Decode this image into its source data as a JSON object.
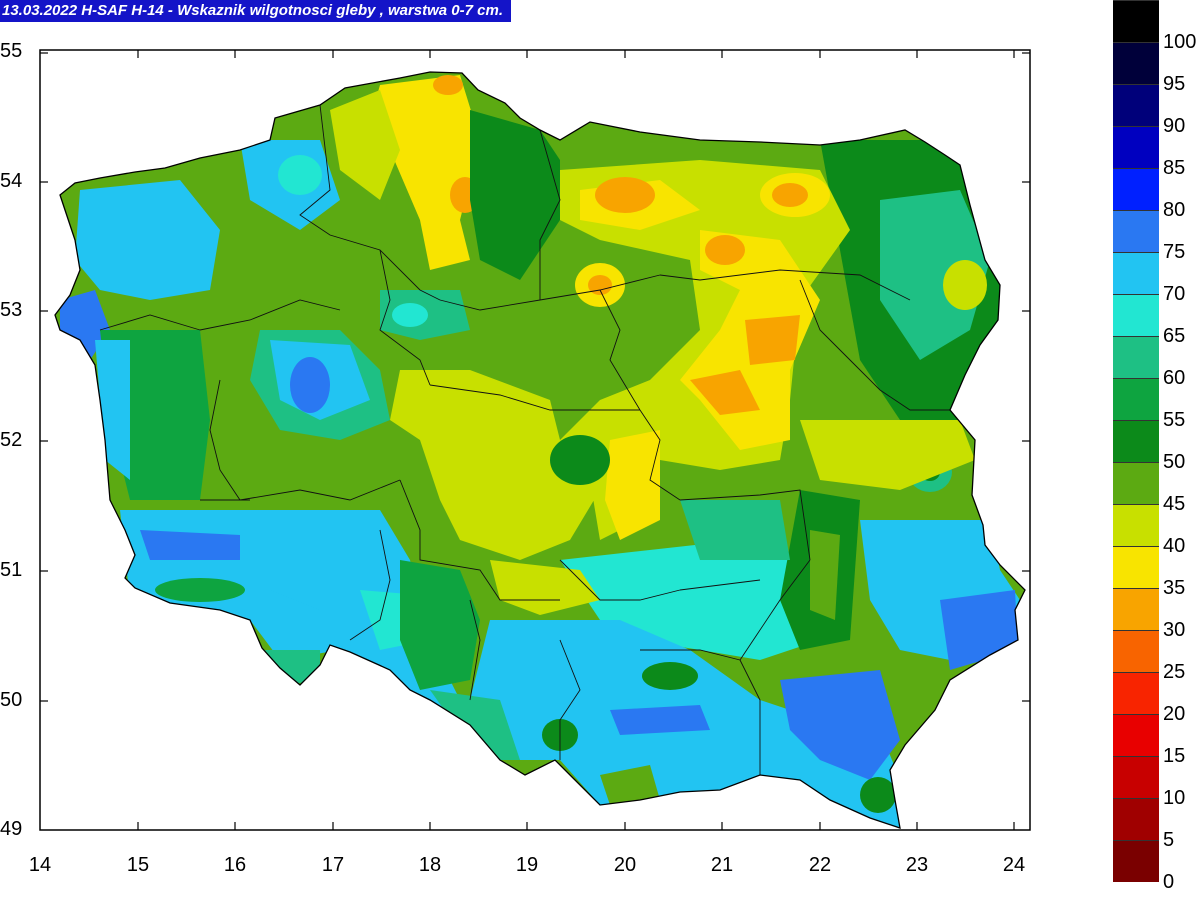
{
  "title": "13.03.2022 H-SAF H-14 - Wskaznik wilgotnosci gleby , warstwa 0-7 cm.",
  "axes": {
    "lat_ticks": [
      "55",
      "54",
      "53",
      "52",
      "51",
      "50",
      "49"
    ],
    "lon_ticks": [
      "14",
      "15",
      "16",
      "17",
      "18",
      "19",
      "20",
      "21",
      "22",
      "23",
      "24"
    ]
  },
  "legend": {
    "levels": [
      {
        "label": "100",
        "color": "#000000"
      },
      {
        "label": "95",
        "color": "#00003a"
      },
      {
        "label": "90",
        "color": "#00007a"
      },
      {
        "label": "85",
        "color": "#0000c0"
      },
      {
        "label": "80",
        "color": "#0020ff"
      },
      {
        "label": "75",
        "color": "#2a78f2"
      },
      {
        "label": "70",
        "color": "#22c4f2"
      },
      {
        "label": "65",
        "color": "#22e6d2"
      },
      {
        "label": "60",
        "color": "#1ec084"
      },
      {
        "label": "55",
        "color": "#0ea440"
      },
      {
        "label": "50",
        "color": "#0c8a1a"
      },
      {
        "label": "45",
        "color": "#5caa12"
      },
      {
        "label": "40",
        "color": "#c8e000"
      },
      {
        "label": "35",
        "color": "#f8e400"
      },
      {
        "label": "30",
        "color": "#f8a400"
      },
      {
        "label": "25",
        "color": "#f86400"
      },
      {
        "label": "20",
        "color": "#f82400"
      },
      {
        "label": "15",
        "color": "#e80000"
      },
      {
        "label": "10",
        "color": "#c80000"
      },
      {
        "label": "5",
        "color": "#a00000"
      },
      {
        "label": "0",
        "color": "#7a0000"
      }
    ]
  }
}
